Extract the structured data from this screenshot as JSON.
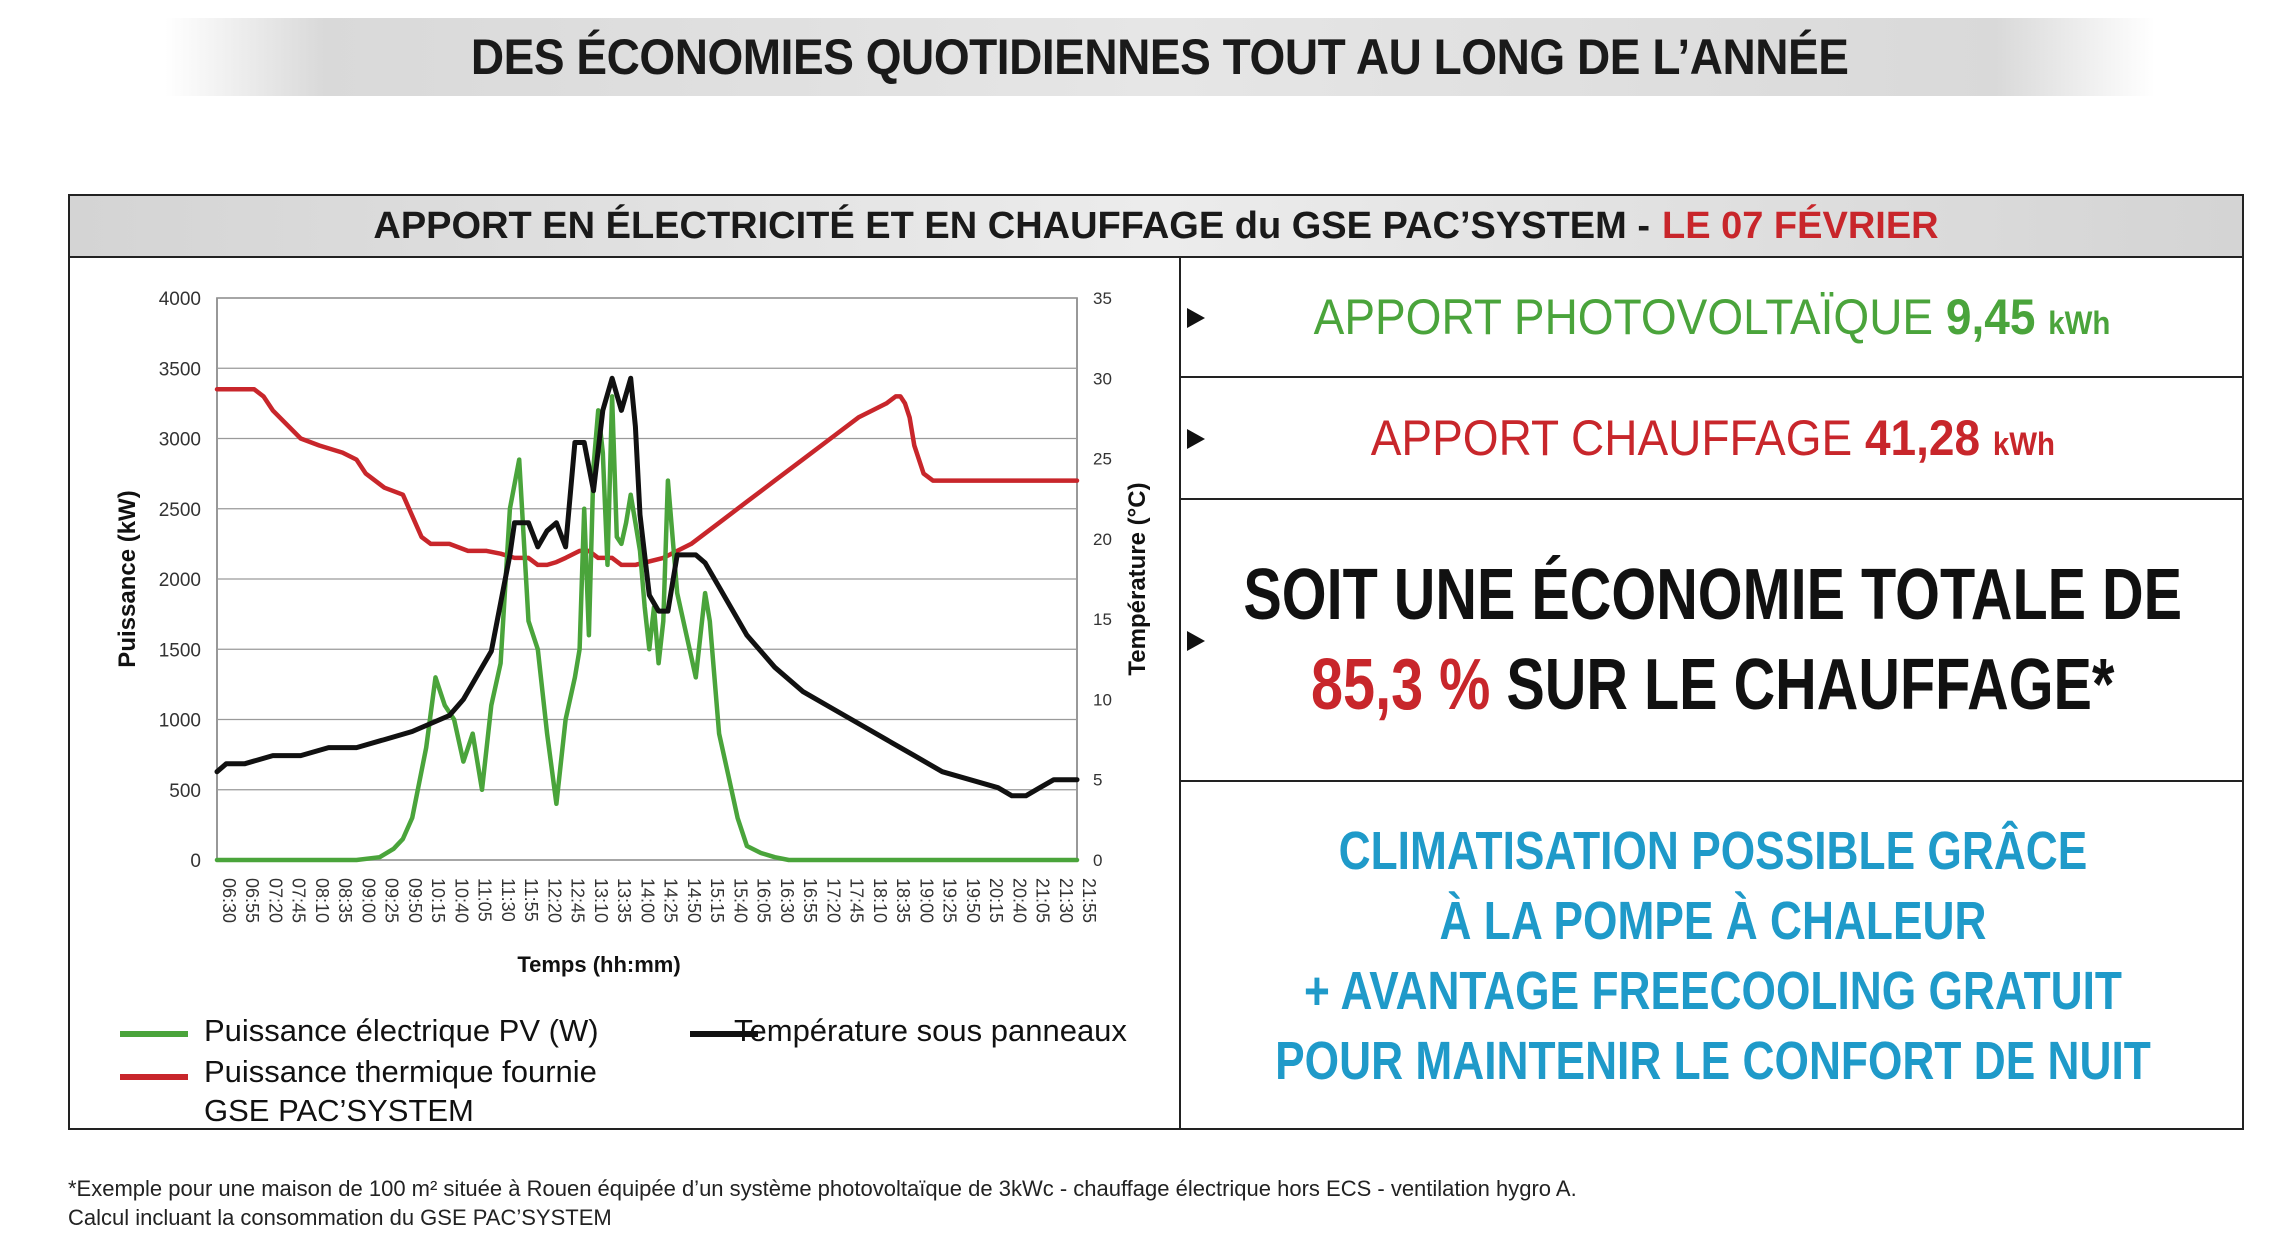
{
  "banner": {
    "title": "DES ÉCONOMIES QUOTIDIENNES TOUT AU LONG DE L’ANNÉE"
  },
  "panel": {
    "title_main": "APPORT EN ÉLECTRICITÉ ET EN CHAUFFAGE du GSE PAC’SYSTEM -",
    "title_date": "LE 07 FÉVRIER"
  },
  "stats": {
    "pv_label": "APPORT PHOTOVOLTAÏQUE",
    "pv_value": "9,45",
    "pv_unit": "kWh",
    "heat_label": "APPORT CHAUFFAGE",
    "heat_value": "41,28",
    "heat_unit": "kWh",
    "economy_line1": "SOIT UNE ÉCONOMIE TOTALE DE",
    "economy_pct": "85,3 %",
    "economy_line2_rest": "SUR LE CHAUFFAGE*",
    "clim_line1": "CLIMATISATION POSSIBLE GRÂCE",
    "clim_line2": "À LA POMPE À CHALEUR",
    "clim_line3": "+ AVANTAGE FREECOOLING GRATUIT",
    "clim_line4": "POUR MAINTENIR LE CONFORT DE NUIT"
  },
  "legend": {
    "pv": "Puissance électrique PV (W)",
    "temp": "Température sous panneaux",
    "thermal_line1": "Puissance thermique fournie",
    "thermal_line2": "GSE PAC’SYSTEM"
  },
  "footnote": {
    "line1": "*Exemple pour une maison de 100 m² située à Rouen équipée d’un système photovoltaïque de 3kWc - chauffage électrique hors ECS - ventilation hygro A.",
    "line2": "Calcul incluant la consommation du GSE PAC’SYSTEM"
  },
  "colors": {
    "pv": "#4aa43b",
    "thermal": "#c8262b",
    "temp": "#111111",
    "accent_blue": "#1f9ac9"
  },
  "chart_data": {
    "type": "line",
    "xlabel": "Temps (hh:mm)",
    "ylabel": "Puissance (kW)",
    "y2label": "Température (°C)",
    "ylim": [
      0,
      4000
    ],
    "y2lim": [
      0,
      35
    ],
    "yticks": [
      "4000",
      "3500",
      "3000",
      "2500",
      "2000",
      "1500",
      "1000",
      "500",
      "0"
    ],
    "y2ticks": [
      "35",
      "30",
      "25",
      "20",
      "15",
      "10",
      "5",
      "0"
    ],
    "x_ticks": [
      "06:30",
      "06:55",
      "07:20",
      "07:45",
      "08:10",
      "08:35",
      "09:00",
      "09:25",
      "09:50",
      "10:15",
      "10:40",
      "11:05",
      "11:30",
      "11:55",
      "12:20",
      "12:45",
      "13:10",
      "13:35",
      "14:00",
      "14:25",
      "14:50",
      "15:15",
      "15:40",
      "16:05",
      "16:30",
      "16:55",
      "17:20",
      "17:45",
      "18:10",
      "18:35",
      "19:00",
      "19:25",
      "19:50",
      "20:15",
      "20:40",
      "21:05",
      "21:30",
      "21:55"
    ],
    "grid": true,
    "series": [
      {
        "name": "Puissance électrique PV (W)",
        "axis": "left",
        "color": "#4aa43b",
        "x": [
          "06:30",
          "09:00",
          "09:25",
          "09:40",
          "09:50",
          "10:00",
          "10:15",
          "10:25",
          "10:35",
          "10:45",
          "10:55",
          "11:05",
          "11:15",
          "11:25",
          "11:35",
          "11:45",
          "11:55",
          "12:05",
          "12:15",
          "12:25",
          "12:35",
          "12:45",
          "12:55",
          "13:00",
          "13:05",
          "13:10",
          "13:15",
          "13:20",
          "13:25",
          "13:30",
          "13:35",
          "13:40",
          "13:45",
          "13:50",
          "13:55",
          "14:00",
          "14:05",
          "14:10",
          "14:15",
          "14:20",
          "14:25",
          "14:30",
          "14:35",
          "14:45",
          "14:55",
          "15:05",
          "15:15",
          "15:20",
          "15:30",
          "15:40",
          "15:50",
          "16:00",
          "16:15",
          "16:30",
          "16:45",
          "17:00",
          "17:20",
          "17:45",
          "18:00",
          "21:55"
        ],
        "y": [
          0,
          0,
          20,
          80,
          150,
          300,
          800,
          1300,
          1100,
          1000,
          700,
          900,
          500,
          1100,
          1400,
          2500,
          2850,
          1700,
          1500,
          900,
          400,
          1000,
          1300,
          1500,
          2500,
          1600,
          2800,
          3200,
          2900,
          2100,
          3300,
          2300,
          2250,
          2400,
          2600,
          2400,
          2200,
          1800,
          1500,
          1800,
          1400,
          1700,
          2700,
          1900,
          1600,
          1300,
          1900,
          1700,
          900,
          600,
          300,
          100,
          50,
          20,
          0,
          0,
          0,
          0,
          0,
          0
        ]
      },
      {
        "name": "Puissance thermique fournie GSE PAC’SYSTEM",
        "axis": "left",
        "color": "#c8262b",
        "x": [
          "06:30",
          "07:00",
          "07:10",
          "07:20",
          "07:30",
          "08:00",
          "08:20",
          "08:45",
          "09:00",
          "09:10",
          "09:30",
          "09:50",
          "10:00",
          "10:10",
          "10:20",
          "10:40",
          "11:00",
          "11:20",
          "11:35",
          "11:50",
          "12:05",
          "12:15",
          "12:25",
          "12:35",
          "12:45",
          "13:00",
          "13:10",
          "13:20",
          "13:35",
          "13:45",
          "14:00",
          "14:30",
          "15:00",
          "15:30",
          "16:00",
          "16:30",
          "17:00",
          "17:30",
          "18:00",
          "18:15",
          "18:30",
          "18:40",
          "18:45",
          "18:50",
          "18:55",
          "19:00",
          "19:10",
          "19:20",
          "19:30",
          "20:00",
          "20:30",
          "21:00",
          "21:30",
          "21:55"
        ],
        "y": [
          3350,
          3350,
          3350,
          3300,
          3200,
          3000,
          2950,
          2900,
          2850,
          2750,
          2650,
          2600,
          2450,
          2300,
          2250,
          2250,
          2200,
          2200,
          2180,
          2150,
          2150,
          2100,
          2100,
          2120,
          2150,
          2200,
          2200,
          2150,
          2150,
          2100,
          2100,
          2150,
          2250,
          2400,
          2550,
          2700,
          2850,
          3000,
          3150,
          3200,
          3250,
          3300,
          3300,
          3250,
          3150,
          2950,
          2750,
          2700,
          2700,
          2700,
          2700,
          2700,
          2700,
          2700
        ]
      },
      {
        "name": "Température sous panneaux",
        "axis": "right",
        "color": "#111111",
        "x": [
          "06:30",
          "06:40",
          "07:00",
          "07:30",
          "08:00",
          "08:30",
          "09:00",
          "09:30",
          "10:00",
          "10:20",
          "10:40",
          "10:55",
          "11:05",
          "11:15",
          "11:25",
          "11:35",
          "11:45",
          "11:50",
          "11:55",
          "12:05",
          "12:15",
          "12:25",
          "12:35",
          "12:45",
          "12:55",
          "13:05",
          "13:15",
          "13:25",
          "13:35",
          "13:45",
          "13:55",
          "14:00",
          "14:05",
          "14:15",
          "14:25",
          "14:35",
          "14:45",
          "14:55",
          "15:05",
          "15:15",
          "15:30",
          "15:45",
          "16:00",
          "16:30",
          "17:00",
          "17:30",
          "18:00",
          "18:30",
          "19:00",
          "19:30",
          "20:00",
          "20:30",
          "20:45",
          "21:00",
          "21:15",
          "21:30",
          "21:45",
          "21:55"
        ],
        "y": [
          5.5,
          6,
          6,
          6.5,
          6.5,
          7,
          7,
          7.5,
          8,
          8.5,
          9,
          10,
          11,
          12,
          13,
          16,
          19,
          21,
          21,
          21,
          19.5,
          20.5,
          21,
          19.5,
          26,
          26,
          23,
          28,
          30,
          28,
          30,
          27,
          21.5,
          16.5,
          15.5,
          15.5,
          19,
          19,
          19,
          18.5,
          17,
          15.5,
          14,
          12,
          10.5,
          9.5,
          8.5,
          7.5,
          6.5,
          5.5,
          5,
          4.5,
          4,
          4,
          4.5,
          5,
          5,
          5
        ]
      }
    ]
  }
}
